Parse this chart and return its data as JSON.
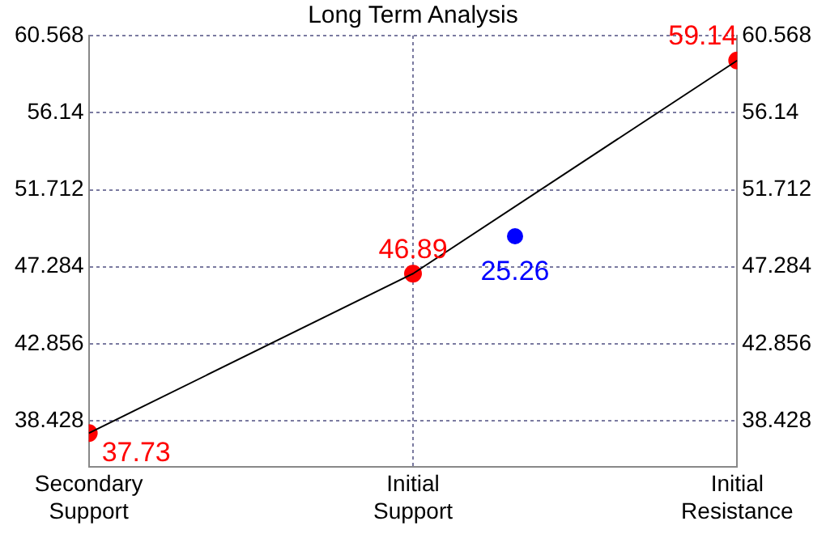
{
  "chart_data": {
    "type": "line",
    "title": "Long Term Analysis",
    "categories": [
      "Secondary Support",
      "Initial Support",
      "Initial Resistance"
    ],
    "series": [
      {
        "color": "#000000",
        "marker": "none",
        "values": [
          37.73,
          46.89,
          59.14
        ]
      },
      {
        "type": "scatter",
        "color": "#ff0000",
        "marker": "circle",
        "values": [
          37.73,
          46.89,
          59.14
        ],
        "value_labels": [
          "37.73",
          "46.89",
          "59.14"
        ]
      }
    ],
    "annotations": [
      "25.26"
    ],
    "ylim": [
      35.8,
      60.568
    ],
    "yticks": [
      38.428,
      42.856,
      47.284,
      51.712,
      56.14,
      60.568
    ],
    "y2lim": [
      35.8,
      60.568
    ],
    "y2ticks": [
      38.428,
      42.856,
      47.284,
      51.712,
      56.14,
      60.568
    ],
    "grid": true,
    "line_style": "solid"
  }
}
